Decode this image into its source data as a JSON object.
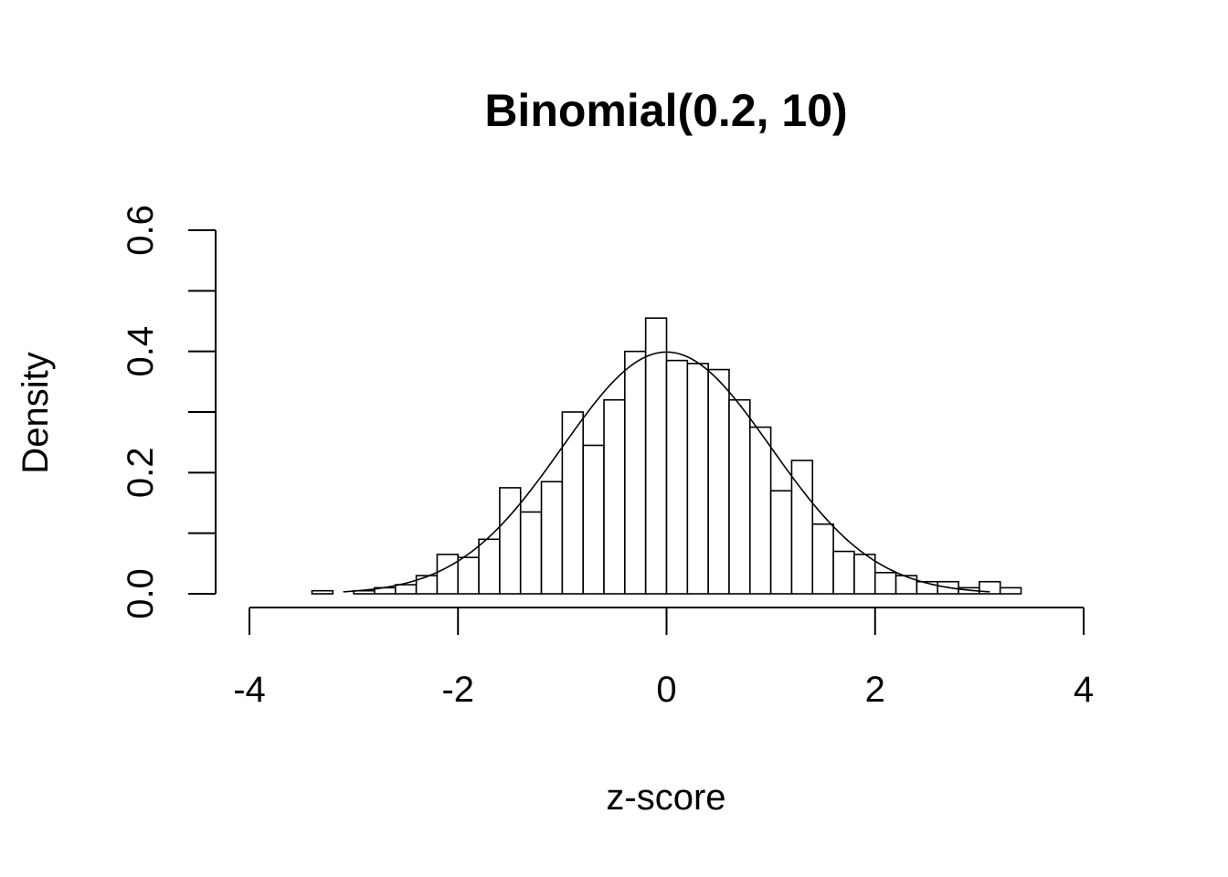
{
  "chart_data": {
    "type": "bar",
    "subtype": "histogram",
    "title": "Binomial(0.2, 10)",
    "xlabel": "z-score",
    "ylabel": "Density",
    "xlim": [
      -4,
      4
    ],
    "ylim": [
      0,
      0.6
    ],
    "x_ticks": [
      -4,
      -2,
      0,
      2,
      4
    ],
    "x_tick_labels": [
      "-4",
      "-2",
      "0",
      "2",
      "4"
    ],
    "y_ticks": [
      0,
      0.1,
      0.2,
      0.3,
      0.4,
      0.5,
      0.6
    ],
    "y_tick_labels": [
      "0.0",
      "",
      "0.2",
      "",
      "0.4",
      "",
      "0.6"
    ],
    "grid": false,
    "bin_width": 0.2,
    "bins": [
      {
        "x0": -3.4,
        "x1": -3.2,
        "density": 0.005
      },
      {
        "x0": -3.2,
        "x1": -3.0,
        "density": 0.0
      },
      {
        "x0": -3.0,
        "x1": -2.8,
        "density": 0.005
      },
      {
        "x0": -2.8,
        "x1": -2.6,
        "density": 0.01
      },
      {
        "x0": -2.6,
        "x1": -2.4,
        "density": 0.015
      },
      {
        "x0": -2.4,
        "x1": -2.2,
        "density": 0.03
      },
      {
        "x0": -2.2,
        "x1": -2.0,
        "density": 0.065
      },
      {
        "x0": -2.0,
        "x1": -1.8,
        "density": 0.06
      },
      {
        "x0": -1.8,
        "x1": -1.6,
        "density": 0.09
      },
      {
        "x0": -1.6,
        "x1": -1.4,
        "density": 0.175
      },
      {
        "x0": -1.4,
        "x1": -1.2,
        "density": 0.135
      },
      {
        "x0": -1.2,
        "x1": -1.0,
        "density": 0.185
      },
      {
        "x0": -1.0,
        "x1": -0.8,
        "density": 0.3
      },
      {
        "x0": -0.8,
        "x1": -0.6,
        "density": 0.245
      },
      {
        "x0": -0.6,
        "x1": -0.4,
        "density": 0.32
      },
      {
        "x0": -0.4,
        "x1": -0.2,
        "density": 0.4
      },
      {
        "x0": -0.2,
        "x1": 0.0,
        "density": 0.455
      },
      {
        "x0": 0.0,
        "x1": 0.2,
        "density": 0.385
      },
      {
        "x0": 0.2,
        "x1": 0.4,
        "density": 0.38
      },
      {
        "x0": 0.4,
        "x1": 0.6,
        "density": 0.37
      },
      {
        "x0": 0.6,
        "x1": 0.8,
        "density": 0.32
      },
      {
        "x0": 0.8,
        "x1": 1.0,
        "density": 0.275
      },
      {
        "x0": 1.0,
        "x1": 1.2,
        "density": 0.17
      },
      {
        "x0": 1.2,
        "x1": 1.4,
        "density": 0.22
      },
      {
        "x0": 1.4,
        "x1": 1.6,
        "density": 0.115
      },
      {
        "x0": 1.6,
        "x1": 1.8,
        "density": 0.07
      },
      {
        "x0": 1.8,
        "x1": 2.0,
        "density": 0.065
      },
      {
        "x0": 2.0,
        "x1": 2.2,
        "density": 0.035
      },
      {
        "x0": 2.2,
        "x1": 2.4,
        "density": 0.03
      },
      {
        "x0": 2.4,
        "x1": 2.6,
        "density": 0.02
      },
      {
        "x0": 2.6,
        "x1": 2.8,
        "density": 0.02
      },
      {
        "x0": 2.8,
        "x1": 3.0,
        "density": 0.01
      },
      {
        "x0": 3.0,
        "x1": 3.2,
        "density": 0.02
      },
      {
        "x0": 3.2,
        "x1": 3.4,
        "density": 0.01
      }
    ],
    "overlay": {
      "type": "line",
      "function": "standard normal density",
      "mean": 0,
      "sd": 1
    },
    "colors": {
      "bar_fill": "#ffffff",
      "bar_stroke": "#000000",
      "curve": "#000000"
    }
  }
}
